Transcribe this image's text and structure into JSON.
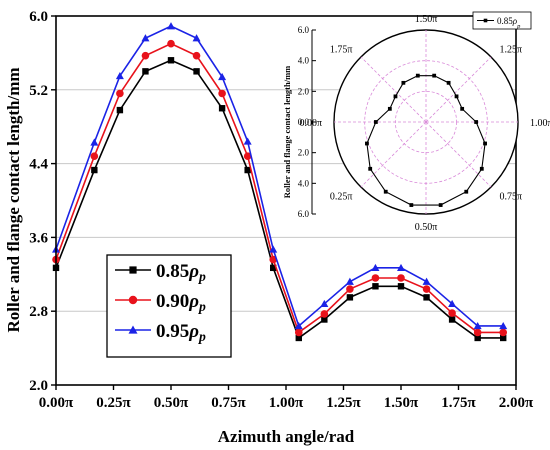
{
  "chart_data": [
    {
      "type": "line",
      "title": "",
      "xlabel": "Azimuth angle/rad",
      "ylabel": "Roller and flange contact length/mm",
      "xlim": [
        0,
        2.0
      ],
      "ylim": [
        2.0,
        6.0
      ],
      "xticks": [
        0,
        0.25,
        0.5,
        0.75,
        1.0,
        1.25,
        1.5,
        1.75,
        2.0
      ],
      "xtick_labels": [
        "0.00π",
        "0.25π",
        "0.50π",
        "0.75π",
        "1.00π",
        "1.25π",
        "1.50π",
        "1.75π",
        "2.00π"
      ],
      "yticks": [
        2.0,
        2.8,
        3.6,
        4.4,
        5.2,
        6.0
      ],
      "ytick_labels": [
        "2.0",
        "2.8",
        "3.6",
        "4.4",
        "5.2",
        "6.0"
      ],
      "grid": "horizontal",
      "legend_position": "lower-left",
      "x": [
        0,
        0.1667,
        0.2778,
        0.3889,
        0.5,
        0.6111,
        0.7222,
        0.8333,
        0.9444,
        1.0556,
        1.1667,
        1.2778,
        1.3889,
        1.5,
        1.6111,
        1.7222,
        1.8333,
        1.9444
      ],
      "series": [
        {
          "name_prefix": "0.85",
          "name_sub": "p",
          "color": "#000000",
          "marker": "square",
          "values": [
            3.27,
            4.33,
            4.98,
            5.4,
            5.52,
            5.4,
            5.0,
            4.33,
            3.27,
            2.51,
            2.71,
            2.95,
            3.07,
            3.07,
            2.95,
            2.71,
            2.51,
            2.51
          ]
        },
        {
          "name_prefix": "0.90",
          "name_sub": "p",
          "color": "#e8121b",
          "marker": "circle",
          "values": [
            3.36,
            4.48,
            5.16,
            5.57,
            5.7,
            5.57,
            5.16,
            4.48,
            3.36,
            2.57,
            2.77,
            3.04,
            3.16,
            3.16,
            3.04,
            2.78,
            2.57,
            2.57
          ]
        },
        {
          "name_prefix": "0.95",
          "name_sub": "p",
          "color": "#1b23e6",
          "marker": "triangle",
          "values": [
            3.47,
            4.63,
            5.35,
            5.76,
            5.89,
            5.76,
            5.34,
            4.64,
            3.47,
            2.64,
            2.88,
            3.12,
            3.27,
            3.27,
            3.12,
            2.88,
            2.64,
            2.64
          ]
        }
      ]
    },
    {
      "type": "polar-line",
      "ylabel": "Roller and flange contact length/mm",
      "radial_ticks": [
        "6.0",
        "4.0",
        "2.0",
        "0.0",
        "2.0",
        "4.0",
        "6.0"
      ],
      "angle_labels": [
        "1.50π",
        "1.25π",
        "1.00π",
        "0.75π",
        "0.50π",
        "0.25π",
        "0.00π",
        "1.75π"
      ],
      "rmax": 6.0,
      "series": [
        {
          "name_prefix": "0.85",
          "name_sub": "p",
          "color": "#000000",
          "marker": "square",
          "theta": [
            0,
            0.1111,
            0.2222,
            0.3333,
            0.4444,
            0.5556,
            0.6667,
            0.7778,
            0.8889,
            1.0,
            1.1111,
            1.2222,
            1.3333,
            1.4444,
            1.5556,
            1.6667,
            1.7778,
            1.8889
          ],
          "r": [
            3.27,
            4.1,
            4.75,
            5.25,
            5.5,
            5.5,
            5.25,
            4.75,
            4.1,
            3.27,
            2.51,
            2.6,
            2.95,
            3.07,
            3.07,
            2.95,
            2.6,
            2.51
          ]
        }
      ]
    }
  ]
}
